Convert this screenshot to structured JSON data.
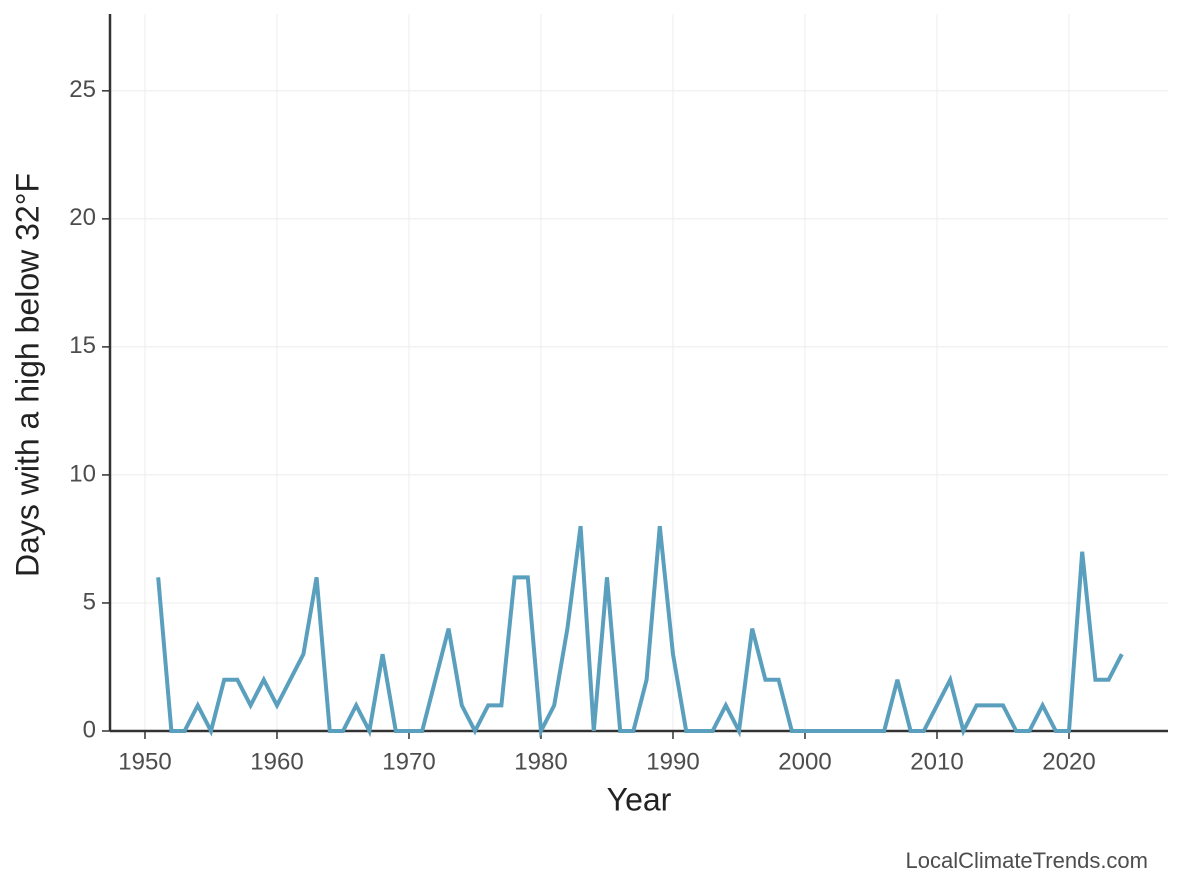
{
  "chart_data": {
    "type": "line",
    "x_label": "Year",
    "y_label": "Days with a high below 32°F",
    "source": "LocalClimateTrends.com",
    "x": [
      1951,
      1952,
      1953,
      1954,
      1955,
      1956,
      1957,
      1958,
      1959,
      1960,
      1961,
      1962,
      1963,
      1964,
      1965,
      1966,
      1967,
      1968,
      1969,
      1970,
      1971,
      1972,
      1973,
      1974,
      1975,
      1976,
      1977,
      1978,
      1979,
      1980,
      1981,
      1982,
      1983,
      1984,
      1985,
      1986,
      1987,
      1988,
      1989,
      1990,
      1991,
      1992,
      1993,
      1994,
      1995,
      1996,
      1997,
      1998,
      1999,
      2000,
      2001,
      2002,
      2003,
      2004,
      2005,
      2006,
      2007,
      2008,
      2009,
      2010,
      2011,
      2012,
      2013,
      2014,
      2015,
      2016,
      2017,
      2018,
      2019,
      2020,
      2021,
      2022,
      2023,
      2024
    ],
    "values": [
      6,
      0,
      0,
      1,
      0,
      2,
      2,
      1,
      2,
      1,
      2,
      3,
      6,
      0,
      0,
      1,
      0,
      3,
      0,
      0,
      0,
      2,
      4,
      1,
      0,
      1,
      1,
      6,
      6,
      0,
      1,
      4,
      8,
      0,
      6,
      0,
      0,
      2,
      8,
      3,
      0,
      0,
      0,
      1,
      0,
      4,
      2,
      2,
      0,
      0,
      0,
      0,
      0,
      0,
      0,
      0,
      2,
      0,
      0,
      1,
      2,
      0,
      1,
      1,
      1,
      0,
      0,
      1,
      0,
      0,
      7,
      2,
      2,
      3
    ],
    "color": "#5a9fbd",
    "xlim": [
      1947.35,
      2027.5
    ],
    "xticks": [
      1950,
      1960,
      1970,
      1980,
      1990,
      2000,
      2010,
      2020
    ],
    "ylim": [
      0,
      28
    ],
    "yticks": [
      0,
      5,
      10,
      15,
      20,
      25
    ],
    "grid": true
  }
}
